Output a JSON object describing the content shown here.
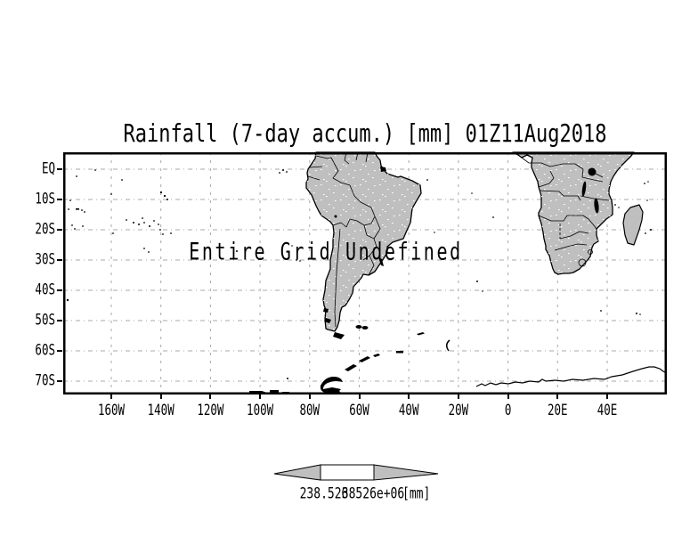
{
  "title": "Rainfall (7-day accum.) [mm] 01Z11Aug2018",
  "map": {
    "message": "Entire Grid Undefined",
    "y_axis_labels": [
      "EQ",
      "10S",
      "20S",
      "30S",
      "40S",
      "50S",
      "60S",
      "70S"
    ],
    "x_axis_labels": [
      "160W",
      "140W",
      "120W",
      "100W",
      "80W",
      "60W",
      "40W",
      "20W",
      "0",
      "20E",
      "40E"
    ]
  },
  "colorbar": {
    "left_value": "238.526",
    "right_value": "38526e+06",
    "unit": "[mm]"
  },
  "colors": {
    "background": "#ffffff",
    "land": "#bfbfbf",
    "coast": "#000000",
    "grid": "#a8a8a8",
    "frame": "#000000",
    "message_text": "#3e3e3e"
  }
}
